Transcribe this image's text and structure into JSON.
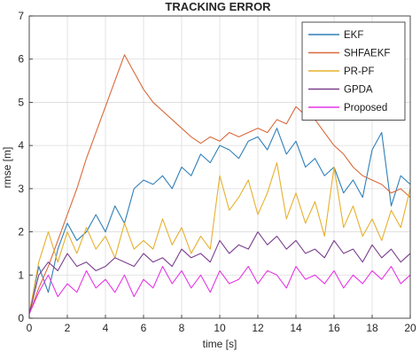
{
  "chart_data": {
    "type": "line",
    "title": "TRACKING ERROR",
    "xlabel": "time [s]",
    "ylabel": "rmse [m]",
    "xlim": [
      0,
      20
    ],
    "ylim": [
      0,
      7
    ],
    "xticks": [
      0,
      2,
      4,
      6,
      8,
      10,
      12,
      14,
      16,
      18,
      20
    ],
    "yticks": [
      0,
      1,
      2,
      3,
      4,
      5,
      6,
      7
    ],
    "xtick_labels": [
      "0",
      "2",
      "4",
      "6",
      "8",
      "10",
      "12",
      "14",
      "16",
      "18",
      "20"
    ],
    "ytick_labels": [
      "0",
      "1",
      "2",
      "3",
      "4",
      "5",
      "6",
      "7"
    ],
    "grid": true,
    "legend_position": "top-right",
    "series": [
      {
        "name": "EKF",
        "color": "#2f7fb8",
        "x": [
          0,
          0.5,
          1,
          1.5,
          2,
          2.5,
          3,
          3.5,
          4,
          4.5,
          5,
          5.5,
          6,
          6.5,
          7,
          7.5,
          8,
          8.5,
          9,
          9.5,
          10,
          10.5,
          11,
          11.5,
          12,
          12.5,
          13,
          13.5,
          14,
          14.5,
          15,
          15.5,
          16,
          16.5,
          17,
          17.5,
          18,
          18.5,
          19,
          19.5,
          20
        ],
        "values": [
          0.1,
          1.2,
          0.6,
          1.6,
          2.2,
          1.8,
          2.0,
          2.4,
          2.0,
          2.6,
          2.2,
          3.0,
          3.2,
          3.1,
          3.3,
          3.0,
          3.5,
          3.3,
          3.8,
          3.6,
          4.0,
          3.9,
          3.7,
          4.1,
          4.2,
          3.9,
          4.4,
          3.8,
          4.1,
          3.5,
          3.7,
          3.3,
          3.5,
          2.9,
          3.2,
          2.8,
          3.9,
          4.3,
          2.6,
          3.3,
          3.1
        ]
      },
      {
        "name": "SHFAEKF",
        "color": "#d9693a",
        "x": [
          0,
          0.5,
          1,
          1.5,
          2,
          2.5,
          3,
          3.5,
          4,
          4.5,
          5,
          5.5,
          6,
          6.5,
          7,
          7.5,
          8,
          8.5,
          9,
          9.5,
          10,
          10.5,
          11,
          11.5,
          12,
          12.5,
          13,
          13.5,
          14,
          14.5,
          15,
          15.5,
          16,
          16.5,
          17,
          17.5,
          18,
          18.5,
          19,
          19.5,
          20
        ],
        "values": [
          0.1,
          0.7,
          1.2,
          1.8,
          2.4,
          3.0,
          3.7,
          4.3,
          4.9,
          5.5,
          6.1,
          5.7,
          5.3,
          5.0,
          4.8,
          4.6,
          4.4,
          4.2,
          4.05,
          4.2,
          4.1,
          4.3,
          4.2,
          4.3,
          4.4,
          4.3,
          4.6,
          4.5,
          4.9,
          4.7,
          4.6,
          4.3,
          4.0,
          3.8,
          3.5,
          3.3,
          3.2,
          3.1,
          2.9,
          3.0,
          2.8
        ]
      },
      {
        "name": "PR-PF",
        "color": "#e6b02e",
        "x": [
          0,
          0.5,
          1,
          1.5,
          2,
          2.5,
          3,
          3.5,
          4,
          4.5,
          5,
          5.5,
          6,
          6.5,
          7,
          7.5,
          8,
          8.5,
          9,
          9.5,
          10,
          10.5,
          11,
          11.5,
          12,
          12.5,
          13,
          13.5,
          14,
          14.5,
          15,
          15.5,
          16,
          16.5,
          17,
          17.5,
          18,
          18.5,
          19,
          19.5,
          20
        ],
        "values": [
          0.1,
          1.3,
          2.0,
          1.3,
          2.0,
          1.5,
          2.1,
          1.6,
          1.9,
          1.4,
          2.2,
          1.6,
          1.8,
          1.6,
          2.3,
          1.7,
          2.1,
          1.5,
          1.9,
          1.6,
          3.3,
          2.5,
          2.8,
          3.2,
          2.4,
          2.9,
          3.6,
          2.3,
          2.9,
          2.2,
          2.7,
          1.9,
          3.5,
          2.1,
          2.6,
          1.9,
          2.3,
          1.8,
          2.5,
          2.1,
          3.0
        ]
      },
      {
        "name": "GPDA",
        "color": "#7b3f8e",
        "x": [
          0,
          0.5,
          1,
          1.5,
          2,
          2.5,
          3,
          3.5,
          4,
          4.5,
          5,
          5.5,
          6,
          6.5,
          7,
          7.5,
          8,
          8.5,
          9,
          9.5,
          10,
          10.5,
          11,
          11.5,
          12,
          12.5,
          13,
          13.5,
          14,
          14.5,
          15,
          15.5,
          16,
          16.5,
          17,
          17.5,
          18,
          18.5,
          19,
          19.5,
          20
        ],
        "values": [
          0.1,
          1.0,
          1.3,
          1.1,
          1.5,
          1.2,
          1.3,
          1.1,
          1.2,
          1.4,
          1.3,
          1.2,
          1.5,
          1.3,
          1.4,
          1.2,
          1.6,
          1.4,
          1.5,
          1.3,
          1.8,
          1.5,
          1.7,
          1.6,
          2.0,
          1.7,
          1.9,
          1.6,
          1.8,
          1.5,
          1.6,
          1.4,
          1.8,
          1.5,
          1.6,
          1.3,
          1.7,
          1.4,
          1.6,
          1.3,
          1.5
        ]
      },
      {
        "name": "Proposed",
        "color": "#e635e6",
        "x": [
          0,
          0.5,
          1,
          1.5,
          2,
          2.5,
          3,
          3.5,
          4,
          4.5,
          5,
          5.5,
          6,
          6.5,
          7,
          7.5,
          8,
          8.5,
          9,
          9.5,
          10,
          10.5,
          11,
          11.5,
          12,
          12.5,
          13,
          13.5,
          14,
          14.5,
          15,
          15.5,
          16,
          16.5,
          17,
          17.5,
          18,
          18.5,
          19,
          19.5,
          20
        ],
        "values": [
          0.1,
          0.6,
          1.0,
          0.5,
          0.8,
          0.6,
          1.1,
          0.7,
          0.9,
          0.6,
          1.0,
          0.5,
          0.9,
          0.7,
          1.2,
          0.8,
          1.1,
          0.7,
          1.0,
          0.6,
          1.1,
          0.8,
          0.9,
          1.2,
          0.8,
          1.1,
          1.0,
          0.7,
          1.2,
          0.9,
          1.0,
          0.8,
          1.1,
          0.7,
          1.0,
          0.8,
          1.1,
          0.9,
          1.2,
          0.8,
          1.0
        ]
      }
    ]
  }
}
